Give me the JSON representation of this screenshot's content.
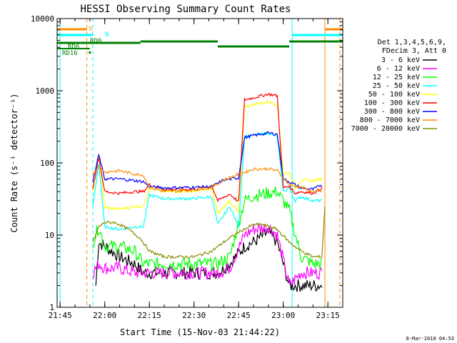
{
  "chart_data": {
    "type": "line",
    "title": "HESSI Observing Summary Count Rates",
    "xlabel": "Start Time (15-Nov-03 21:44:22)",
    "ylabel": "Count Rate (s⁻¹ detector⁻¹)",
    "y_scale": "log",
    "xlim": [
      "21:44",
      "23:20"
    ],
    "ylim": [
      1,
      10000
    ],
    "x_ticks": [
      "21:45",
      "22:00",
      "22:15",
      "22:30",
      "22:45",
      "23:00",
      "23:15"
    ],
    "y_ticks": [
      "1",
      "10",
      "100",
      "1000",
      "10000"
    ],
    "legend_position": "right",
    "legend_header": [
      "Det 1,3,4,5,6,9,",
      "FDecim 3, Att 0"
    ],
    "series": [
      {
        "name": "3 - 6 keV",
        "color": "#000000",
        "x": [
          "21:57",
          "21:58",
          "22:00",
          "22:05",
          "22:10",
          "22:13",
          "22:20",
          "22:30",
          "22:38",
          "22:42",
          "22:47",
          "22:50",
          "22:55",
          "22:58",
          "23:02",
          "23:06",
          "23:10",
          "23:13"
        ],
        "y": [
          2,
          8,
          7,
          5,
          4,
          3,
          3,
          3,
          3,
          4,
          7,
          8,
          11,
          8,
          2,
          2,
          2,
          2
        ]
      },
      {
        "name": "6 - 12 keV",
        "color": "#ff00ff",
        "x": [
          "21:56",
          "21:58",
          "22:00",
          "22:05",
          "22:10",
          "22:15",
          "22:20",
          "22:30",
          "22:38",
          "22:42",
          "22:47",
          "22:50",
          "22:55",
          "22:58",
          "23:02",
          "23:06",
          "23:10",
          "23:13"
        ],
        "y": [
          3,
          4,
          3.5,
          3.5,
          3,
          3,
          3,
          3,
          3,
          3.5,
          10,
          12,
          13,
          10,
          2,
          3,
          3,
          3
        ]
      },
      {
        "name": "12 - 25 keV",
        "color": "#00ff00",
        "x": [
          "21:56",
          "21:58",
          "22:00",
          "22:05",
          "22:10",
          "22:13",
          "22:20",
          "22:30",
          "22:38",
          "22:42",
          "22:47",
          "22:50",
          "22:55",
          "22:58",
          "23:02",
          "23:06",
          "23:10",
          "23:13"
        ],
        "y": [
          8,
          13,
          7,
          7,
          6,
          4,
          4,
          4,
          4,
          5,
          30,
          35,
          38,
          40,
          22,
          5,
          4,
          4
        ]
      },
      {
        "name": "25 - 50 keV",
        "color": "#00ffff",
        "x": [
          "21:56",
          "21:58",
          "22:00",
          "22:05",
          "22:10",
          "22:13",
          "22:15",
          "22:20",
          "22:30",
          "22:36",
          "22:38",
          "22:42",
          "22:45",
          "22:47",
          "22:50",
          "22:55",
          "22:58",
          "23:00",
          "23:02",
          "23:04",
          "23:06",
          "23:10",
          "23:13"
        ],
        "y": [
          25,
          100,
          13,
          12,
          13,
          13,
          36,
          32,
          32,
          34,
          14,
          25,
          13,
          230,
          240,
          260,
          230,
          40,
          45,
          30,
          34,
          30,
          30
        ]
      },
      {
        "name": "50 - 100 keV",
        "color": "#ffff00",
        "x": [
          "21:56",
          "21:58",
          "22:00",
          "22:05",
          "22:10",
          "22:13",
          "22:15",
          "22:20",
          "22:30",
          "22:36",
          "22:38",
          "22:42",
          "22:45",
          "22:47",
          "22:50",
          "22:55",
          "22:58",
          "23:00",
          "23:02",
          "23:04",
          "23:06",
          "23:10",
          "23:13"
        ],
        "y": [
          40,
          130,
          24,
          23,
          25,
          25,
          45,
          40,
          41,
          44,
          20,
          30,
          20,
          600,
          650,
          700,
          650,
          70,
          75,
          45,
          58,
          57,
          60
        ]
      },
      {
        "name": "100 - 300 keV",
        "color": "#ff0000",
        "x": [
          "21:56",
          "21:58",
          "22:00",
          "22:05",
          "22:10",
          "22:13",
          "22:15",
          "22:20",
          "22:30",
          "22:36",
          "22:38",
          "22:42",
          "22:45",
          "22:47",
          "22:50",
          "22:55",
          "22:58",
          "23:00",
          "23:02",
          "23:04",
          "23:06",
          "23:10",
          "23:13"
        ],
        "y": [
          45,
          120,
          40,
          38,
          40,
          40,
          50,
          43,
          43,
          48,
          30,
          37,
          29,
          750,
          800,
          900,
          850,
          45,
          48,
          38,
          40,
          38,
          45
        ]
      },
      {
        "name": "300 - 800 keV",
        "color": "#0000ff",
        "x": [
          "21:56",
          "21:58",
          "22:00",
          "22:05",
          "22:10",
          "22:13",
          "22:15",
          "22:20",
          "22:30",
          "22:36",
          "22:40",
          "22:45",
          "22:47",
          "22:50",
          "22:55",
          "22:58",
          "23:00",
          "23:02",
          "23:06",
          "23:10",
          "23:13"
        ],
        "y": [
          55,
          130,
          60,
          60,
          57,
          55,
          47,
          45,
          46,
          47,
          58,
          62,
          225,
          240,
          260,
          250,
          60,
          55,
          45,
          43,
          50
        ]
      },
      {
        "name": "800 - 7000 keV",
        "color": "#ff8c00",
        "x": [
          "21:56",
          "21:58",
          "22:00",
          "22:05",
          "22:10",
          "22:13",
          "22:15",
          "22:20",
          "22:30",
          "22:36",
          "22:40",
          "22:45",
          "22:50",
          "22:55",
          "22:58",
          "23:02",
          "23:06",
          "23:10",
          "23:13"
        ],
        "y": [
          70,
          90,
          75,
          78,
          70,
          68,
          46,
          40,
          42,
          46,
          58,
          70,
          82,
          83,
          78,
          50,
          46,
          40,
          40
        ]
      },
      {
        "name": "7000 - 20000 keV",
        "color": "#8b8b00",
        "x": [
          "21:56",
          "21:58",
          "22:00",
          "22:03",
          "22:05",
          "22:08",
          "22:12",
          "22:15",
          "22:20",
          "22:30",
          "22:36",
          "22:40",
          "22:45",
          "22:50",
          "22:53",
          "22:58",
          "23:02",
          "23:06",
          "23:10",
          "23:13",
          "23:14"
        ],
        "y": [
          8,
          13,
          15,
          15,
          14,
          12,
          9,
          6,
          5,
          5,
          6,
          8,
          11,
          14,
          14,
          12,
          8,
          6,
          5,
          5,
          25
        ]
      }
    ],
    "flags": [
      {
        "name": "S",
        "color": "#ff8c00"
      },
      {
        "name": "N",
        "color": "#00ffff"
      },
      {
        "name": "RD0",
        "color": "#008000"
      },
      {
        "name": "RD6",
        "color": "#008000"
      },
      {
        "name": "RD16",
        "color": "#008000"
      }
    ],
    "footer_stamp": "8-Mar-2010 04:53"
  }
}
